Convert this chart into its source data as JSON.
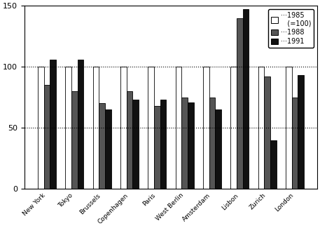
{
  "cities": [
    "New York",
    "Tokyo",
    "Brussels",
    "Copenhagen",
    "Paris",
    "West Berlin",
    "Amsterdam",
    "Lisbon",
    "Zurich",
    "London"
  ],
  "values_1985": [
    100,
    100,
    100,
    100,
    100,
    100,
    100,
    100,
    100,
    100
  ],
  "values_1988": [
    85,
    80,
    70,
    80,
    68,
    75,
    75,
    140,
    92,
    75
  ],
  "values_1991": [
    106,
    106,
    65,
    73,
    73,
    71,
    65,
    147,
    40,
    93
  ],
  "color_1985": "#ffffff",
  "color_1988": "#555555",
  "color_1991": "#111111",
  "edgecolor": "#000000",
  "ylim": [
    0,
    150
  ],
  "yticks": [
    0,
    50,
    100,
    150
  ],
  "bar_width": 0.22,
  "hline_y1": 100,
  "hline_y2": 50,
  "legend_label_1985": "1985",
  "legend_label_1985b": "(=100)",
  "legend_label_1988": "1988",
  "legend_label_1991": "1991",
  "figsize": [
    4.57,
    3.25
  ],
  "dpi": 100
}
